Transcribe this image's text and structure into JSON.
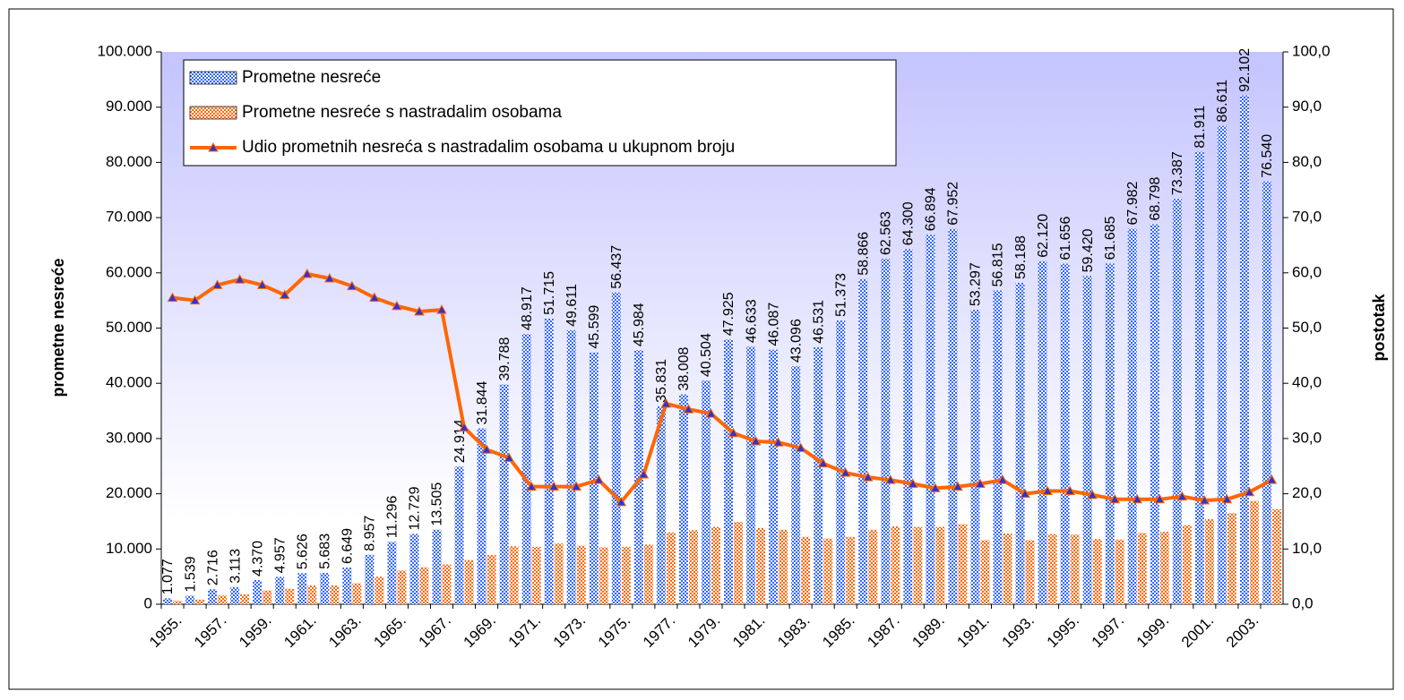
{
  "chart_data": {
    "type": "bar",
    "categories": [
      "1955.",
      null,
      "1957.",
      null,
      "1959.",
      null,
      "1961.",
      null,
      "1963.",
      null,
      "1965.",
      null,
      "1967.",
      null,
      "1969.",
      null,
      "1971.",
      null,
      "1973.",
      null,
      "1975.",
      null,
      "1977.",
      null,
      "1979.",
      null,
      "1981.",
      null,
      "1983.",
      null,
      "1985.",
      null,
      "1987.",
      null,
      "1989.",
      null,
      "1991.",
      null,
      "1993.",
      null,
      "1995.",
      null,
      "1997.",
      null,
      "1999.",
      null,
      "2001.",
      null,
      "2003.",
      null
    ],
    "series": [
      {
        "name": "Prometne nesreće",
        "color": "#3366ff",
        "values": [
          1077,
          1539,
          2716,
          3113,
          4370,
          4957,
          5626,
          5683,
          6649,
          8957,
          11296,
          12729,
          13505,
          24914,
          31844,
          39788,
          48917,
          51715,
          49611,
          45599,
          56437,
          45984,
          35831,
          38008,
          40504,
          47925,
          46633,
          46087,
          43096,
          46531,
          51373,
          58866,
          62563,
          64300,
          66894,
          67952,
          53297,
          56815,
          58188,
          62120,
          61656,
          59420,
          61685,
          67982,
          68798,
          73387,
          81911,
          86611,
          92102,
          76540
        ],
        "value_labels": [
          "1.077",
          "1.539",
          "2.716",
          "3.113",
          "4.370",
          "4.957",
          "5.626",
          "5.683",
          "6.649",
          "8.957",
          "11.296",
          "12.729",
          "13.505",
          "24.914",
          "31.844",
          "39.788",
          "48.917",
          "51.715",
          "49.611",
          "45.599",
          "56.437",
          "45.984",
          "35.831",
          "38.008",
          "40.504",
          "47.925",
          "46.633",
          "46.087",
          "43.096",
          "46.531",
          "51.373",
          "58.866",
          "62.563",
          "64.300",
          "66.894",
          "67.952",
          "53.297",
          "56.815",
          "58.188",
          "62.120",
          "61.656",
          "59.420",
          "61.685",
          "67.982",
          "68.798",
          "73.387",
          "81.911",
          "86.611",
          "92.102",
          "76.540"
        ]
      },
      {
        "name": "Prometne nesreće s nastradalim osobama",
        "color": "#ff6600",
        "values": [
          600,
          850,
          1600,
          1800,
          2500,
          2800,
          3400,
          3400,
          3800,
          5000,
          6100,
          6700,
          7200,
          8000,
          8900,
          10500,
          10400,
          11000,
          10600,
          10300,
          10400,
          10800,
          13000,
          13400,
          14000,
          14900,
          13800,
          13500,
          12200,
          11900,
          12200,
          13500,
          14100,
          14000,
          14000,
          14500,
          11600,
          12800,
          11600,
          12700,
          12600,
          11800,
          11700,
          12900,
          13100,
          14300,
          15400,
          16500,
          18700,
          17200
        ]
      },
      {
        "name": "Udio prometnih nesreća s nastradalim osobama u ukupnom broju",
        "color": "#ff6600",
        "marker_color": "#3333cc",
        "type": "line",
        "axis": "y2",
        "values": [
          55.5,
          55.0,
          57.8,
          58.8,
          57.8,
          56.0,
          59.8,
          59.0,
          57.6,
          55.5,
          54.0,
          53.0,
          53.3,
          32.0,
          28.0,
          26.5,
          21.3,
          21.3,
          21.3,
          22.5,
          18.5,
          23.5,
          36.3,
          35.3,
          34.5,
          31.0,
          29.5,
          29.3,
          28.3,
          25.5,
          23.8,
          23.0,
          22.5,
          21.8,
          21.0,
          21.3,
          21.8,
          22.5,
          20.0,
          20.5,
          20.5,
          19.8,
          19.0,
          19.0,
          19.0,
          19.5,
          18.8,
          19.0,
          20.3,
          22.5
        ]
      }
    ],
    "y_label": "prometne nesreće",
    "y2_label": "postotak",
    "ylim": [
      0,
      100000
    ],
    "yticks": [
      0,
      {
        "value": 10000,
        "label": "10.000"
      },
      {
        "value": 20000,
        "label": "20.000"
      },
      {
        "value": 30000,
        "label": "30.000"
      },
      {
        "value": 40000,
        "label": "40.000"
      },
      {
        "value": 50000,
        "label": "50.000"
      },
      {
        "value": 60000,
        "label": "60.000"
      },
      {
        "value": 70000,
        "label": "70.000"
      },
      {
        "value": 80000,
        "label": "80.000"
      },
      {
        "value": 90000,
        "label": "90.000"
      },
      {
        "value": 100000,
        "label": "100.000"
      }
    ],
    "y2lim": [
      0,
      100
    ],
    "y2ticks": [
      {
        "value": 0,
        "label": "0,0"
      },
      {
        "value": 10,
        "label": "10,0"
      },
      {
        "value": 20,
        "label": "20,0"
      },
      {
        "value": 30,
        "label": "30,0"
      },
      {
        "value": 40,
        "label": "40,0"
      },
      {
        "value": 50,
        "label": "50,0"
      },
      {
        "value": 60,
        "label": "60,0"
      },
      {
        "value": 70,
        "label": "70,0"
      },
      {
        "value": 80,
        "label": "80,0"
      },
      {
        "value": 90,
        "label": "90,0"
      },
      {
        "value": 100,
        "label": "100,0"
      }
    ],
    "legend": "upper left"
  }
}
